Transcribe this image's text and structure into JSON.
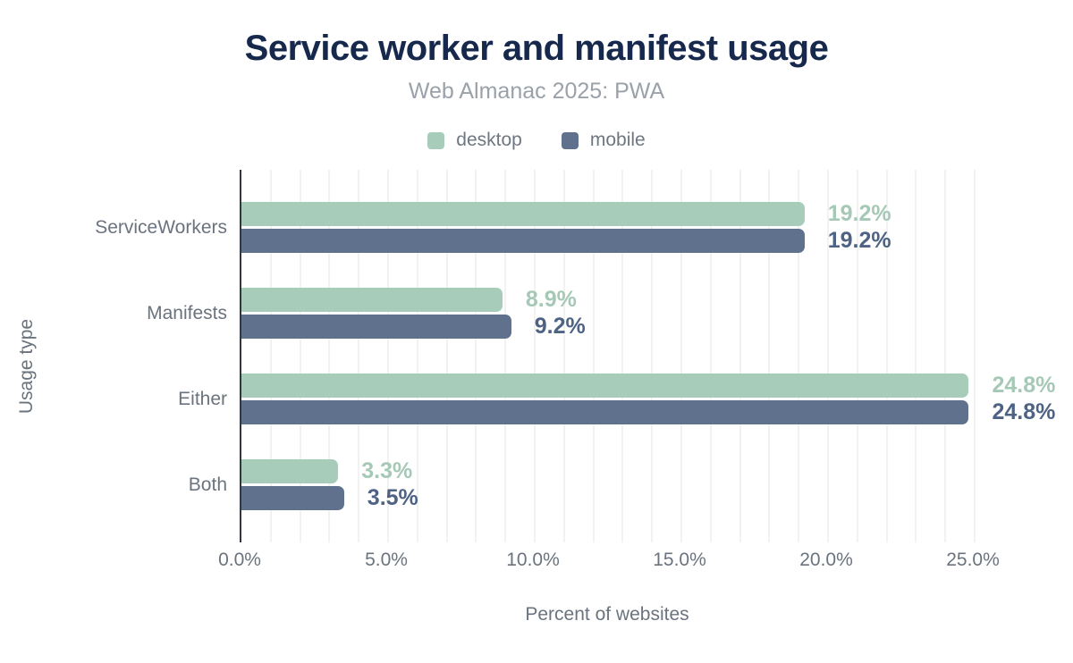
{
  "title": "Service worker and manifest usage",
  "subtitle": "Web Almanac 2025: PWA",
  "legend": {
    "items": [
      {
        "label": "desktop",
        "color": "#a8ccba"
      },
      {
        "label": "mobile",
        "color": "#5f718d"
      }
    ]
  },
  "colors": {
    "title": "#16294d",
    "subtitle": "#9aa1a9",
    "axis_text": "#6a737e",
    "legend_text": "#6e7781",
    "gridline": "#f2f2f3",
    "axis_line": "#33373d",
    "desktop_bar": "#a8ccba",
    "mobile_bar": "#5f718d",
    "desktop_value_label": "#a5c9b6",
    "mobile_value_label": "#4e6384"
  },
  "chart_data": {
    "type": "bar",
    "orientation": "horizontal",
    "title": "Service worker and manifest usage",
    "subtitle": "Web Almanac 2025: PWA",
    "categories": [
      "ServiceWorkers",
      "Manifests",
      "Either",
      "Both"
    ],
    "series": [
      {
        "name": "desktop",
        "color": "#a8ccba",
        "label_color": "#a5c9b6",
        "values": [
          19.2,
          8.9,
          24.8,
          3.3
        ],
        "labels": [
          "19.2%",
          "8.9%",
          "24.8%",
          "3.3%"
        ]
      },
      {
        "name": "mobile",
        "color": "#5f718d",
        "label_color": "#4e6384",
        "values": [
          19.2,
          9.2,
          24.8,
          3.5
        ],
        "labels": [
          "19.2%",
          "9.2%",
          "24.8%",
          "3.5%"
        ]
      }
    ],
    "xlabel": "Percent of websites",
    "ylabel": "Usage type",
    "xlim": [
      0,
      25
    ],
    "xticks": [
      "0.0%",
      "5.0%",
      "10.0%",
      "15.0%",
      "20.0%",
      "25.0%"
    ],
    "xtick_values": [
      0,
      5,
      10,
      15,
      20,
      25
    ],
    "minor_grid_step_pct": 1,
    "grid": "vertical minor gridlines every 1%",
    "legend_position": "top"
  }
}
